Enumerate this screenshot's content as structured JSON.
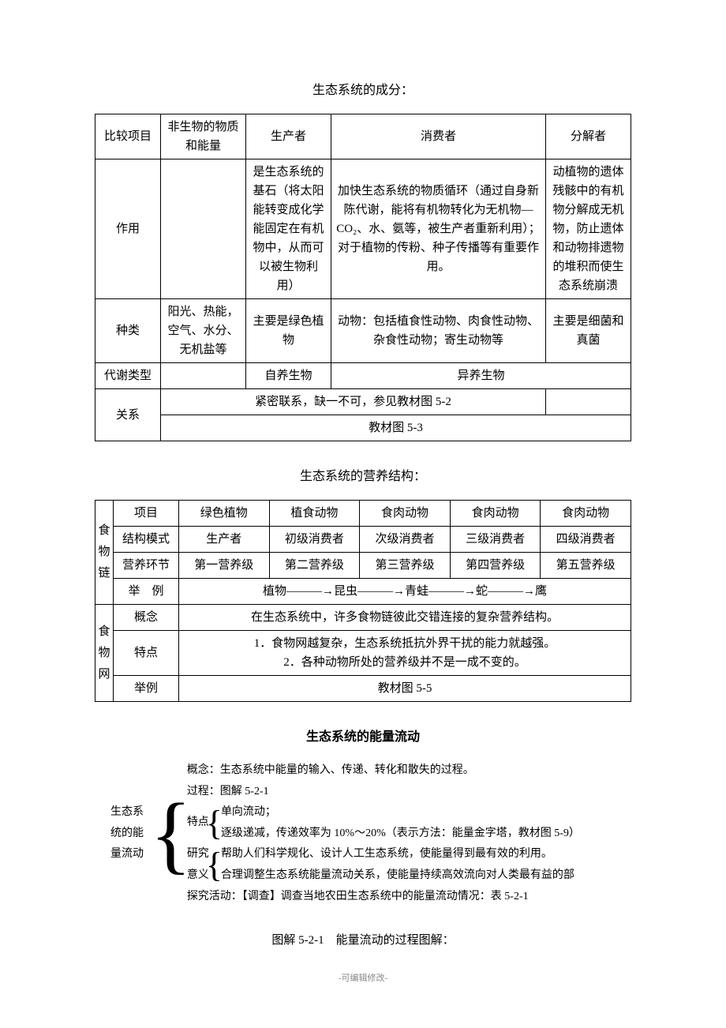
{
  "section1_title": "生态系统的成分：",
  "t1": {
    "h1": "比较项目",
    "h2": "非生物的物质和能量",
    "h3": "生产者",
    "h4": "消费者",
    "h5": "分解者",
    "r1_label": "作用",
    "r1_c2": "",
    "r1_c3": "是生态系统的基石（将太阳能转变成化学能固定在有机物中，从而可以被生物利用）",
    "r1_c4": "加快生态系统的物质循环（通过自身新陈代谢，能将有机物转化为无机物—CO₂、水、氨等，被生产者重新利用）；对于植物的传粉、种子传播等有重要作用。",
    "r1_c5": "动植物的遗体残骸中的有机物分解成无机物，防止遗体和动物排遗物的堆积而使生态系统崩溃",
    "r2_label": "种类",
    "r2_c2": "阳光、热能，空气、水分、无机盐等",
    "r2_c3": "主要是绿色植物",
    "r2_c4": "动物：包括植食性动物、肉食性动物、杂食性动物；寄生动物等",
    "r2_c5": "主要是细菌和真菌",
    "r3_label": "代谢类型",
    "r3_c3": "自养生物",
    "r3_c45": "异养生物",
    "r4_label": "关系",
    "r4_row1": "紧密联系，缺一不可，参见教材图 5-2",
    "r4_row2": "教材图 5-3"
  },
  "section2_title": "生态系统的营养结构：",
  "t2": {
    "vlabel1": "食物链",
    "vlabel2": "食物网",
    "h1": "项目",
    "h2": "绿色植物",
    "h3": "植食动物",
    "h4": "食肉动物",
    "h5": "食肉动物",
    "h6": "食肉动物",
    "r1_label": "结构模式",
    "r1_c2": "生产者",
    "r1_c3": "初级消费者",
    "r1_c4": "次级消费者",
    "r1_c5": "三级消费者",
    "r1_c6": "四级消费者",
    "r2_label": "营养环节",
    "r2_c2": "第一营养级",
    "r2_c3": "第二营养级",
    "r2_c4": "第三营养级",
    "r2_c5": "第四营养级",
    "r2_c6": "第五营养级",
    "r3_label": "举　例",
    "r3_content": "植物———→昆虫———→青蛙———→蛇———→鹰",
    "r4_label": "概念",
    "r4_content": "在生态系统中，许多食物链彼此交错连接的复杂营养结构。",
    "r5_label": "特点",
    "r5_line1": "1．食物网越复杂，生态系统抵抗外界干扰的能力就越强。",
    "r5_line2": "2．各种动物所处的营养级并不是一成不变的。",
    "r6_label": "举例",
    "r6_content": "教材图 5-5"
  },
  "section3_title": "生态系统的能量流动",
  "outline": {
    "root": "生态系统的能量流动",
    "n1": "概念：生态系统中能量的输入、传递、转化和散失的过程。",
    "n2": "过程：图解 5-2-1",
    "n3_label": "特点",
    "n3_c1": "单向流动；",
    "n3_c2": "逐级递减，传递效率为 10%～20%（表示方法：能量金字塔，教材图 5-9）",
    "n4_label": "研究意义",
    "n4_c1": "帮助人们科学规化、设计人工生态系统，使能量得到最有效的利用。",
    "n4_c2": "合理调整生态系统能量流动关系，使能量持续高效流向对人类最有益的部",
    "n5": "探究活动：【调查】调查当地农田生态系统中的能量流动情况：表 5-2-1"
  },
  "caption": "图解 5-2-1　能量流动的过程图解：",
  "footer": "-可编辑修改-"
}
